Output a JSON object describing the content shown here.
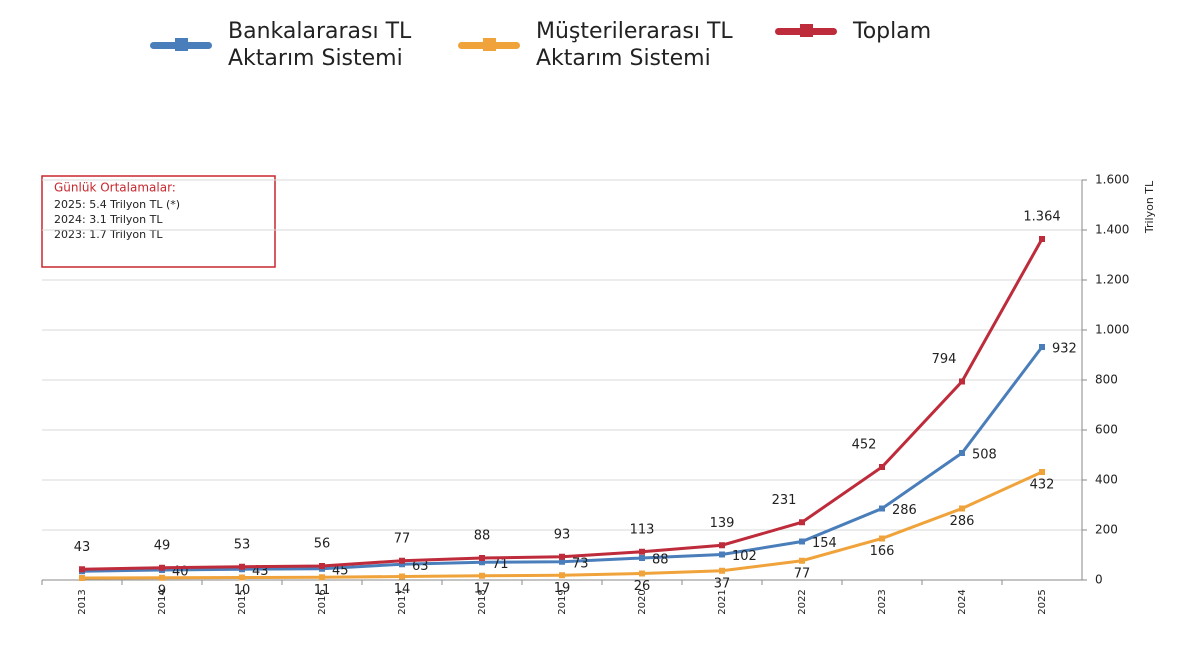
{
  "chart_data": {
    "type": "line",
    "categories": [
      "2013",
      "2014",
      "2015",
      "2016",
      "2017",
      "2018",
      "2019",
      "2020",
      "2021",
      "2022",
      "2023",
      "2024",
      "2025"
    ],
    "series": [
      {
        "name": "Bankalararası TL Aktarım Sistemi",
        "color": "#4a7ebb",
        "values": [
          35,
          40,
          43,
          45,
          63,
          71,
          73,
          88,
          102,
          154,
          286,
          508,
          932
        ],
        "value_labels": [
          null,
          "40",
          "43",
          "45",
          "63",
          "71",
          "73",
          "88",
          "102",
          "154",
          "286",
          "508",
          "932"
        ]
      },
      {
        "name": "Müşterilerarası TL Aktarım Sistemi",
        "color": "#f0a33a",
        "values": [
          8,
          9,
          10,
          11,
          14,
          17,
          19,
          26,
          37,
          77,
          166,
          286,
          432
        ],
        "value_labels": [
          null,
          "9",
          "10",
          "11",
          "14",
          "17",
          "19",
          "26",
          "37",
          "77",
          "166",
          "286",
          "432"
        ]
      },
      {
        "name": "Toplam",
        "color": "#be2b3a",
        "values": [
          43,
          49,
          53,
          56,
          77,
          88,
          93,
          113,
          139,
          231,
          452,
          794,
          1364
        ],
        "value_labels": [
          "43",
          "49",
          "53",
          "56",
          "77",
          "88",
          "93",
          "113",
          "139",
          "231",
          "452",
          "794",
          "1.364"
        ]
      }
    ],
    "ylim": [
      0,
      1600
    ],
    "yticks": [
      0,
      200,
      400,
      600,
      800,
      {
        "value": 1000,
        "label": "1.000"
      },
      {
        "value": 1200,
        "label": "1.200"
      },
      {
        "value": 1400,
        "label": "1.400"
      },
      {
        "value": 1600,
        "label": "1.600"
      }
    ],
    "y_label": "Trilyon TL",
    "grid": true,
    "annotation": {
      "title": "Günlük Ortalamalar:",
      "lines": [
        "2025: 5.4 Trilyon TL (*)",
        "2024: 3.1 Trilyon TL",
        "2023: 1.7 Trilyon TL"
      ]
    }
  }
}
